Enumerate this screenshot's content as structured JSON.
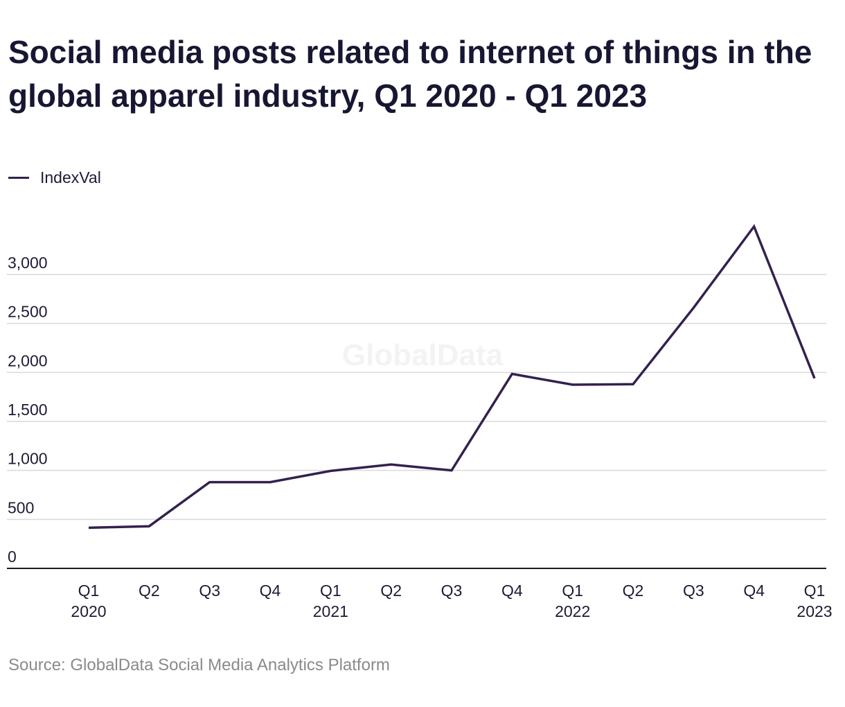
{
  "title": "Social media posts related to internet of things in the global apparel industry, Q1 2020 - Q1 2023",
  "legend": {
    "label": "IndexVal"
  },
  "watermark": "GlobalData",
  "source": "Source: GlobalData Social Media Analytics Platform",
  "colors": {
    "line": "#33214f",
    "grid": "#d9d9d9",
    "axis": "#1a1a1a",
    "text": "#1c1b35",
    "source": "#8a8a8a"
  },
  "chart_data": {
    "type": "line",
    "title": "Social media posts related to internet of things in the global apparel industry, Q1 2020 - Q1 2023",
    "xlabel": "",
    "ylabel": "",
    "ylim": [
      0,
      3000
    ],
    "y_ticks": [
      0,
      500,
      1000,
      1500,
      2000,
      2500,
      3000
    ],
    "y_tick_labels": [
      "0",
      "500",
      "1,000",
      "1,500",
      "2,000",
      "2,500",
      "3,000"
    ],
    "grid": true,
    "legend_position": "top-left",
    "categories": [
      [
        "Q1",
        "2020"
      ],
      [
        "Q2",
        ""
      ],
      [
        "Q3",
        ""
      ],
      [
        "Q4",
        ""
      ],
      [
        "Q1",
        "2021"
      ],
      [
        "Q2",
        ""
      ],
      [
        "Q3",
        ""
      ],
      [
        "Q4",
        ""
      ],
      [
        "Q1",
        "2022"
      ],
      [
        "Q2",
        ""
      ],
      [
        "Q3",
        ""
      ],
      [
        "Q4",
        ""
      ],
      [
        "Q1",
        "2023"
      ]
    ],
    "series": [
      {
        "name": "IndexVal",
        "values": [
          415,
          430,
          880,
          880,
          995,
          1060,
          1000,
          1985,
          1875,
          1880,
          2660,
          3490,
          1940
        ]
      }
    ]
  }
}
